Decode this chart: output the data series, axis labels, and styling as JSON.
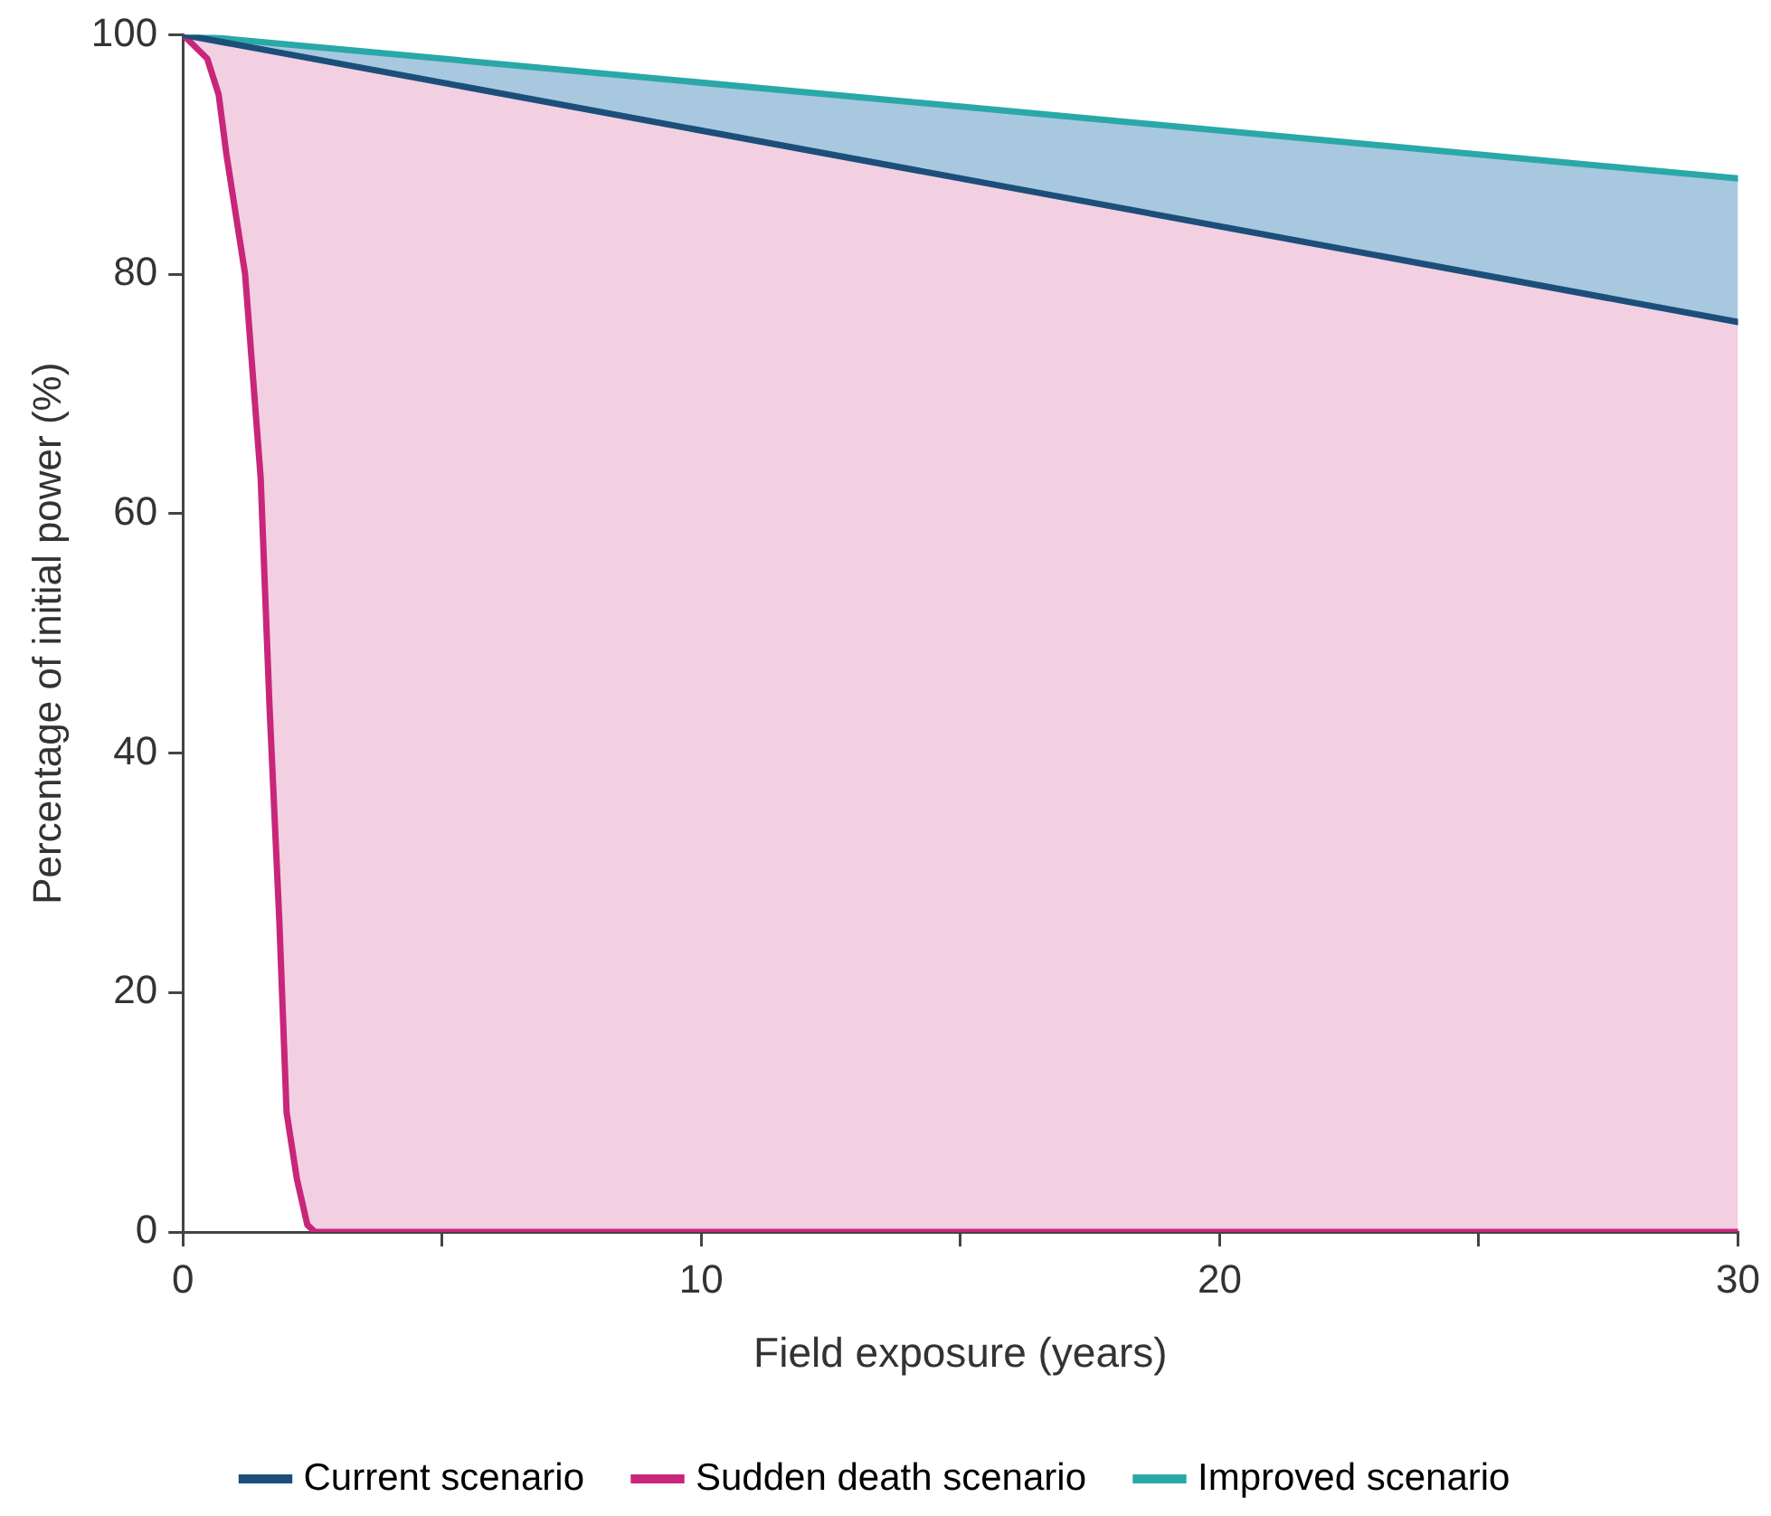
{
  "chart_data": {
    "type": "line",
    "xlabel": "Field exposure (years)",
    "ylabel": "Percentage of initial power (%)",
    "xlim": [
      0,
      30
    ],
    "ylim": [
      0,
      100
    ],
    "xticks": [
      0,
      {
        "value": 5,
        "label": null
      },
      10,
      {
        "value": 15,
        "label": null
      },
      20,
      {
        "value": 25,
        "label": null
      },
      30
    ],
    "yticks": [
      0,
      20,
      40,
      60,
      80,
      100
    ],
    "grid": false,
    "legend": "bottom",
    "marker": "none",
    "line_style": "solid",
    "series": [
      {
        "name": "Current scenario",
        "color": "#1b4f7a",
        "x": [
          0,
          30
        ],
        "values": [
          100,
          76
        ]
      },
      {
        "name": "Sudden death scenario",
        "color": "#c8267a",
        "x": [
          0,
          0.47,
          0.69,
          0.84,
          1.2,
          1.5,
          1.67,
          1.86,
          2.0,
          2.2,
          2.4,
          2.55,
          30
        ],
        "values": [
          100,
          98,
          95,
          90,
          80,
          63,
          44,
          26,
          10,
          4.4,
          0.6,
          0,
          0
        ]
      },
      {
        "name": "Improved scenario",
        "color": "#2aa8a8",
        "x": [
          0,
          30
        ],
        "values": [
          100,
          88
        ]
      }
    ]
  }
}
